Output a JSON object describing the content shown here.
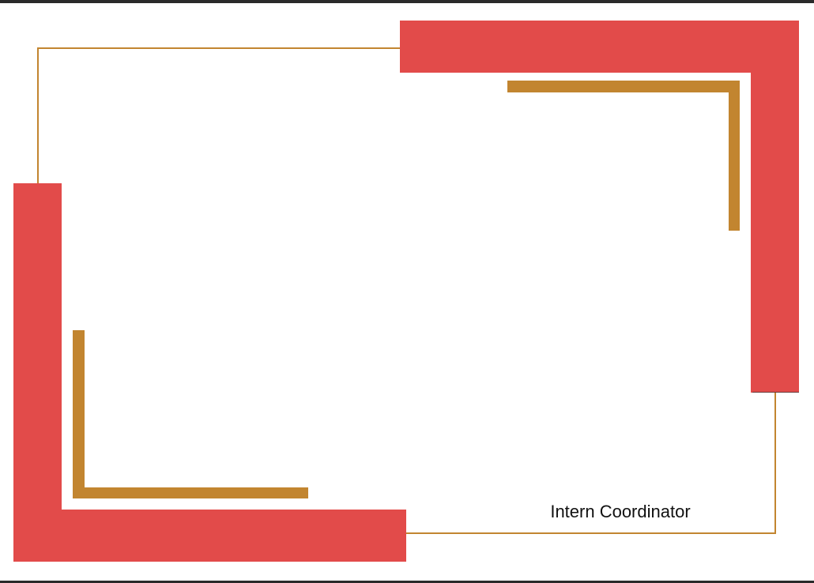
{
  "certificate": {
    "signature_title": "Intern Coordinator"
  },
  "colors": {
    "accent_red": "#e24b4a",
    "accent_gold": "#c28530",
    "background": "#ffffff"
  }
}
